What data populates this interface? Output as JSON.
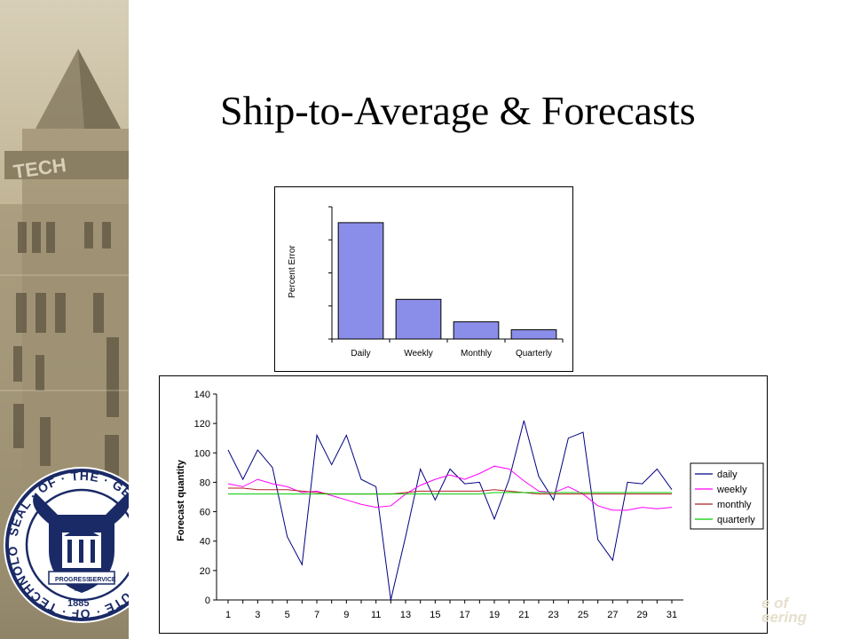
{
  "slide": {
    "title": "Ship-to-Average & Forecasts"
  },
  "logo": {
    "seal_text": "SEAL · OF · THE · GEORGIA · INSTITUTE · OF · TECHNOLOGY",
    "year": "1885",
    "banner_left": "PROGRESS",
    "banner_right": "SERVICE",
    "banner_mid": "AND",
    "building_text": "TECH"
  },
  "colors": {
    "bar_fill": "#8a8ee8",
    "bar_stroke": "#000000",
    "daily": "#000080",
    "weekly": "#ff00ff",
    "monthly": "#b22222",
    "quarterly": "#00cc00",
    "sidebar": "#bfb393"
  },
  "chart_data": [
    {
      "type": "bar",
      "categories": [
        "Daily",
        "Weekly",
        "Monthly",
        "Quarterly"
      ],
      "values": [
        88,
        30,
        13,
        7
      ],
      "ylabel": "Percent Error",
      "ylim": [
        0,
        100
      ],
      "y_ticks_labeled": false,
      "grid": false,
      "legend": "none"
    },
    {
      "type": "line",
      "x": [
        1,
        2,
        3,
        4,
        5,
        6,
        7,
        8,
        9,
        10,
        11,
        12,
        13,
        14,
        15,
        16,
        17,
        18,
        19,
        20,
        21,
        22,
        23,
        24,
        25,
        26,
        27,
        28,
        29,
        30,
        31
      ],
      "x_tick_labels": [
        "1",
        "3",
        "5",
        "7",
        "9",
        "11",
        "13",
        "15",
        "17",
        "19",
        "21",
        "23",
        "25",
        "27",
        "29",
        "31"
      ],
      "ylabel": "Forecast quantity",
      "ylim": [
        0,
        140
      ],
      "y_ticks": [
        0,
        20,
        40,
        60,
        80,
        100,
        120,
        140
      ],
      "grid": false,
      "legend": "right",
      "series": [
        {
          "name": "daily",
          "values": [
            102,
            82,
            102,
            90,
            43,
            24,
            112,
            92,
            112,
            82,
            77,
            0,
            43,
            89,
            68,
            89,
            79,
            80,
            55,
            82,
            122,
            84,
            68,
            110,
            114,
            41,
            27,
            80,
            79,
            89,
            75
          ]
        },
        {
          "name": "weekly",
          "values": [
            79,
            77,
            82,
            79,
            77,
            73,
            74,
            71,
            68,
            65,
            63,
            64,
            72,
            78,
            82,
            85,
            82,
            86,
            91,
            89,
            81,
            74,
            73,
            77,
            72,
            64,
            61,
            61,
            63,
            62,
            63
          ]
        },
        {
          "name": "monthly",
          "values": [
            76,
            76,
            75,
            75,
            75,
            74,
            73,
            72,
            72,
            72,
            72,
            72,
            73,
            74,
            74,
            74,
            74,
            74,
            75,
            74,
            73,
            72,
            72,
            72,
            72,
            72,
            72,
            72,
            72,
            72,
            72
          ]
        },
        {
          "name": "quarterly",
          "values": [
            72,
            72,
            72,
            72,
            72,
            72,
            72,
            72,
            72,
            72,
            72,
            72,
            72,
            72,
            72,
            72,
            72,
            72,
            73,
            73,
            73,
            73,
            73,
            73,
            73,
            73,
            73,
            73,
            73,
            73,
            73
          ]
        }
      ]
    }
  ],
  "watermark": {
    "line1": "e of",
    "line2": "eering"
  }
}
